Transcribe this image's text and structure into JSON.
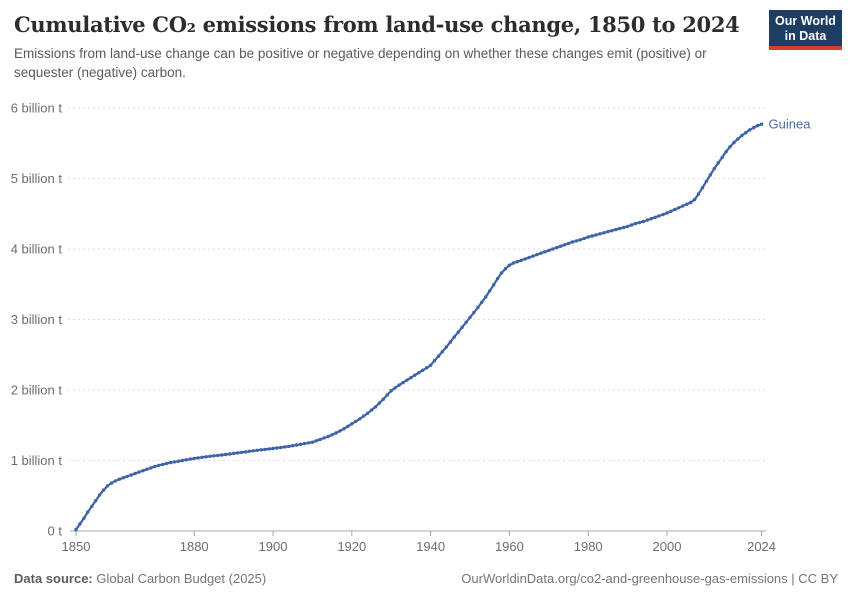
{
  "page": {
    "title": "Cumulative CO₂ emissions from land-use change, 1850 to 2024",
    "subtitle": "Emissions from land-use change can be positive or negative depending on whether these changes emit (positive) or sequester (negative) carbon."
  },
  "logo": {
    "line1": "Our World",
    "line2": "in Data",
    "bg_color": "#1D3D63",
    "accent_color": "#D63E33"
  },
  "footer": {
    "source_label": "Data source:",
    "source_value": "Global Carbon Budget (2025)",
    "license": "OurWorldinData.org/co2-and-greenhouse-gas-emissions | CC BY"
  },
  "colors": {
    "gridline": "#dcdcdc",
    "axis": "#a8a8a8",
    "tick_label": "#6d6d6d"
  },
  "chart_data": {
    "type": "line",
    "title": "Cumulative CO₂ emissions from land-use change, 1850 to 2024",
    "xlabel": "",
    "ylabel": "",
    "y_unit": "billion t",
    "x_range": [
      1850,
      2024
    ],
    "y_range": [
      0,
      6
    ],
    "grid": true,
    "legend_position": "end-of-line-label",
    "x_ticks": [
      1850,
      1880,
      1900,
      1920,
      1940,
      1960,
      1980,
      2000,
      2024
    ],
    "x_tick_labels": [
      "1850",
      "1880",
      "1900",
      "1920",
      "1940",
      "1960",
      "1980",
      "2000",
      "2024"
    ],
    "y_ticks": [
      {
        "value": 0,
        "label": "0 t"
      },
      {
        "value": 1,
        "label": "1 billion t"
      },
      {
        "value": 2,
        "label": "2 billion t"
      },
      {
        "value": 3,
        "label": "3 billion t"
      },
      {
        "value": 4,
        "label": "4 billion t"
      },
      {
        "value": 5,
        "label": "5 billion t"
      },
      {
        "value": 6,
        "label": "6 billion t"
      }
    ],
    "series": [
      {
        "name": "Guinea",
        "color": "#3E63A8",
        "label_color": "#4C6A9C",
        "points_unit": "billion tonnes CO2",
        "points": [
          [
            1850,
            0.02
          ],
          [
            1851,
            0.1
          ],
          [
            1852,
            0.18
          ],
          [
            1853,
            0.27
          ],
          [
            1854,
            0.35
          ],
          [
            1855,
            0.43
          ],
          [
            1856,
            0.51
          ],
          [
            1857,
            0.58
          ],
          [
            1858,
            0.64
          ],
          [
            1859,
            0.68
          ],
          [
            1860,
            0.71
          ],
          [
            1861,
            0.735
          ],
          [
            1862,
            0.755
          ],
          [
            1863,
            0.775
          ],
          [
            1864,
            0.795
          ],
          [
            1865,
            0.815
          ],
          [
            1866,
            0.835
          ],
          [
            1867,
            0.855
          ],
          [
            1868,
            0.875
          ],
          [
            1869,
            0.895
          ],
          [
            1870,
            0.915
          ],
          [
            1872,
            0.945
          ],
          [
            1874,
            0.97
          ],
          [
            1876,
            0.99
          ],
          [
            1878,
            1.01
          ],
          [
            1880,
            1.03
          ],
          [
            1882,
            1.045
          ],
          [
            1884,
            1.06
          ],
          [
            1886,
            1.072
          ],
          [
            1888,
            1.085
          ],
          [
            1890,
            1.1
          ],
          [
            1892,
            1.115
          ],
          [
            1894,
            1.13
          ],
          [
            1896,
            1.145
          ],
          [
            1898,
            1.158
          ],
          [
            1900,
            1.17
          ],
          [
            1902,
            1.185
          ],
          [
            1904,
            1.2
          ],
          [
            1906,
            1.22
          ],
          [
            1908,
            1.24
          ],
          [
            1910,
            1.26
          ],
          [
            1912,
            1.3
          ],
          [
            1914,
            1.34
          ],
          [
            1916,
            1.39
          ],
          [
            1918,
            1.45
          ],
          [
            1920,
            1.52
          ],
          [
            1922,
            1.59
          ],
          [
            1924,
            1.67
          ],
          [
            1926,
            1.76
          ],
          [
            1928,
            1.87
          ],
          [
            1930,
            1.99
          ],
          [
            1932,
            2.07
          ],
          [
            1934,
            2.14
          ],
          [
            1936,
            2.21
          ],
          [
            1938,
            2.28
          ],
          [
            1940,
            2.35
          ],
          [
            1942,
            2.48
          ],
          [
            1944,
            2.61
          ],
          [
            1946,
            2.75
          ],
          [
            1948,
            2.89
          ],
          [
            1950,
            3.03
          ],
          [
            1952,
            3.17
          ],
          [
            1954,
            3.32
          ],
          [
            1956,
            3.49
          ],
          [
            1957,
            3.58
          ],
          [
            1958,
            3.66
          ],
          [
            1959,
            3.72
          ],
          [
            1960,
            3.77
          ],
          [
            1961,
            3.8
          ],
          [
            1962,
            3.82
          ],
          [
            1964,
            3.86
          ],
          [
            1966,
            3.9
          ],
          [
            1968,
            3.94
          ],
          [
            1970,
            3.98
          ],
          [
            1972,
            4.02
          ],
          [
            1974,
            4.06
          ],
          [
            1976,
            4.1
          ],
          [
            1978,
            4.13
          ],
          [
            1980,
            4.17
          ],
          [
            1982,
            4.2
          ],
          [
            1984,
            4.23
          ],
          [
            1986,
            4.26
          ],
          [
            1988,
            4.29
          ],
          [
            1990,
            4.32
          ],
          [
            1992,
            4.36
          ],
          [
            1994,
            4.39
          ],
          [
            1996,
            4.43
          ],
          [
            1998,
            4.47
          ],
          [
            2000,
            4.51
          ],
          [
            2002,
            4.56
          ],
          [
            2004,
            4.61
          ],
          [
            2006,
            4.66
          ],
          [
            2007,
            4.7
          ],
          [
            2008,
            4.78
          ],
          [
            2009,
            4.87
          ],
          [
            2010,
            4.96
          ],
          [
            2011,
            5.05
          ],
          [
            2012,
            5.14
          ],
          [
            2013,
            5.22
          ],
          [
            2014,
            5.3
          ],
          [
            2015,
            5.38
          ],
          [
            2016,
            5.45
          ],
          [
            2017,
            5.51
          ],
          [
            2018,
            5.56
          ],
          [
            2019,
            5.61
          ],
          [
            2020,
            5.65
          ],
          [
            2021,
            5.69
          ],
          [
            2022,
            5.72
          ],
          [
            2023,
            5.75
          ],
          [
            2024,
            5.77
          ]
        ]
      }
    ]
  }
}
